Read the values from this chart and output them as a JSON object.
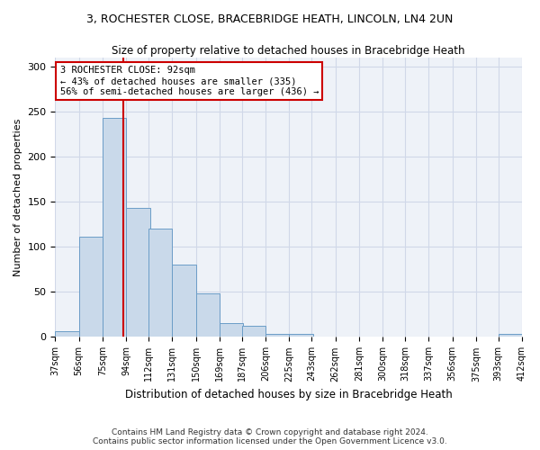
{
  "title1": "3, ROCHESTER CLOSE, BRACEBRIDGE HEATH, LINCOLN, LN4 2UN",
  "title2": "Size of property relative to detached houses in Bracebridge Heath",
  "xlabel": "Distribution of detached houses by size in Bracebridge Heath",
  "ylabel": "Number of detached properties",
  "footer1": "Contains HM Land Registry data © Crown copyright and database right 2024.",
  "footer2": "Contains public sector information licensed under the Open Government Licence v3.0.",
  "annotation_title": "3 ROCHESTER CLOSE: 92sqm",
  "annotation_line1": "← 43% of detached houses are smaller (335)",
  "annotation_line2": "56% of semi-detached houses are larger (436) →",
  "property_size": 92,
  "bar_color": "#c9d9ea",
  "bar_edge_color": "#6b9dc7",
  "vline_color": "#cc0000",
  "annotation_box_color": "#cc0000",
  "grid_color": "#d0d8e8",
  "bg_color": "#eef2f8",
  "bins": [
    37,
    56,
    75,
    94,
    112,
    131,
    150,
    169,
    187,
    206,
    225,
    243,
    262,
    281,
    300,
    318,
    337,
    356,
    375,
    393,
    412
  ],
  "counts": [
    6,
    111,
    243,
    143,
    120,
    80,
    48,
    15,
    12,
    3,
    3,
    0,
    0,
    0,
    0,
    0,
    0,
    0,
    0,
    3
  ],
  "ylim": [
    0,
    310
  ],
  "yticks": [
    0,
    50,
    100,
    150,
    200,
    250,
    300
  ]
}
